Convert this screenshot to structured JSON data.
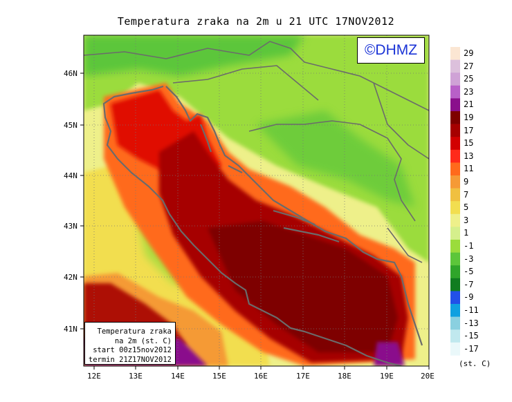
{
  "title": "Temperatura zraka na 2m u 21 UTC 17NOV2012",
  "logo": "©DHMZ",
  "info": {
    "line1": "Temperatura zraka",
    "line2": "na 2m (st. C)",
    "line3": "start 00z15nov2012",
    "line4": "termin 21Z17NOV2012"
  },
  "lat_labels": [
    "46N",
    "45N",
    "44N",
    "43N",
    "42N",
    "41N"
  ],
  "lon_labels": [
    "12E",
    "13E",
    "14E",
    "15E",
    "16E",
    "17E",
    "18E",
    "19E",
    "20E"
  ],
  "legend": {
    "units": "(st. C)",
    "levels": [
      "29",
      "27",
      "25",
      "23",
      "21",
      "19",
      "17",
      "15",
      "13",
      "11",
      "9",
      "7",
      "5",
      "3",
      "1",
      "-1",
      "-3",
      "-5",
      "-7",
      "-9",
      "-11",
      "-13",
      "-15",
      "-17"
    ],
    "colors": [
      "#fbe6d3",
      "#dcc0dc",
      "#cfa2d6",
      "#b860c8",
      "#8a0f8c",
      "#7e0000",
      "#a60000",
      "#d20000",
      "#ff2a1a",
      "#ff6a1c",
      "#f59a36",
      "#f0c040",
      "#f2de50",
      "#eef08a",
      "#d5ef8c",
      "#9bdc3c",
      "#5cc63a",
      "#2fa52a",
      "#107c20",
      "#2250e8",
      "#10a0e0",
      "#8ad0e0",
      "#c0e8ee",
      "#eaf8fa"
    ]
  },
  "map_colors": {
    "sea_warm": "#7e0000",
    "sea_warm2": "#a60000",
    "north_adriatic": "#e01000",
    "coastal_band": "#ff6a1c",
    "inland_green": "#9bdc3c",
    "alps_green": "#5cc63a",
    "south_purple": "#8a0f8c",
    "yellow": "#f2de50",
    "light_yellow": "#eef08a",
    "coast_line": "#6b6b6b"
  }
}
